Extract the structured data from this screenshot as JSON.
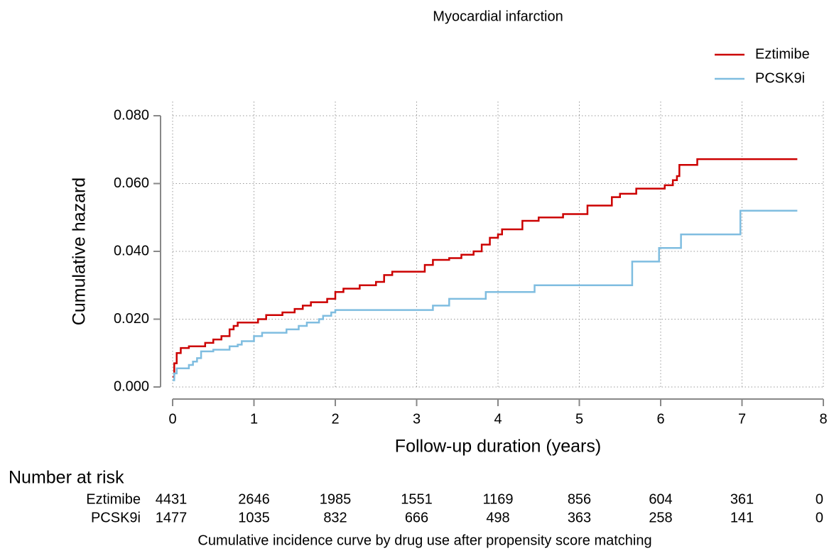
{
  "chart_data": {
    "type": "step",
    "title": "Myocardial infarction",
    "x_label": "Follow-up duration (years)",
    "y_label": "Cumulative hazard",
    "caption": "Cumulative incidence curve by drug use after propensity score matching",
    "xlim": [
      0,
      8
    ],
    "ylim": [
      0,
      0.08
    ],
    "xticks": [
      0,
      1,
      2,
      3,
      4,
      5,
      6,
      7,
      8
    ],
    "yticks": [
      {
        "value": 0,
        "label": "0.000"
      },
      {
        "value": 0.02,
        "label": "0.020"
      },
      {
        "value": 0.04,
        "label": "0.040"
      },
      {
        "value": 0.06,
        "label": "0.060"
      },
      {
        "value": 0.08,
        "label": "0.080"
      }
    ],
    "grid": true,
    "legend_position": "top-right",
    "series": [
      {
        "name": "Eztimibe",
        "color": "#cc0000",
        "x": [
          0,
          0.02,
          0.05,
          0.1,
          0.2,
          0.4,
          0.5,
          0.6,
          0.7,
          0.75,
          0.8,
          1.05,
          1.15,
          1.35,
          1.5,
          1.6,
          1.7,
          1.9,
          2.0,
          2.1,
          2.3,
          2.5,
          2.6,
          2.7,
          3.1,
          3.2,
          3.4,
          3.55,
          3.7,
          3.8,
          3.9,
          4.0,
          4.05,
          4.3,
          4.5,
          4.8,
          5.1,
          5.4,
          5.5,
          5.7,
          6.05,
          6.15,
          6.2,
          6.23,
          6.45,
          7.68
        ],
        "values": [
          0.003,
          0.007,
          0.01,
          0.0115,
          0.012,
          0.013,
          0.014,
          0.015,
          0.017,
          0.018,
          0.019,
          0.02,
          0.0212,
          0.022,
          0.023,
          0.024,
          0.025,
          0.026,
          0.028,
          0.029,
          0.03,
          0.031,
          0.033,
          0.034,
          0.036,
          0.0375,
          0.038,
          0.039,
          0.04,
          0.042,
          0.044,
          0.045,
          0.0465,
          0.049,
          0.05,
          0.051,
          0.0535,
          0.056,
          0.057,
          0.0585,
          0.0595,
          0.061,
          0.0622,
          0.0655,
          0.0672,
          0.0672
        ]
      },
      {
        "name": "PCSK9i",
        "color": "#7fbde0",
        "x": [
          0,
          0.02,
          0.05,
          0.2,
          0.25,
          0.3,
          0.35,
          0.5,
          0.7,
          0.8,
          0.85,
          1.0,
          1.1,
          1.4,
          1.55,
          1.65,
          1.8,
          1.85,
          1.95,
          2.0,
          3.2,
          3.4,
          3.85,
          4.45,
          5.65,
          5.98,
          6.25,
          6.98,
          7.68
        ],
        "values": [
          0.002,
          0.004,
          0.0055,
          0.0065,
          0.0075,
          0.0085,
          0.0105,
          0.011,
          0.012,
          0.0125,
          0.0135,
          0.015,
          0.016,
          0.017,
          0.018,
          0.019,
          0.02,
          0.021,
          0.022,
          0.0227,
          0.024,
          0.026,
          0.028,
          0.03,
          0.037,
          0.041,
          0.045,
          0.052,
          0.052
        ]
      }
    ],
    "risk_table": {
      "title": "Number at risk",
      "rows": [
        {
          "name": "Eztimibe",
          "values": [
            4431,
            2646,
            1985,
            1551,
            1169,
            856,
            604,
            361,
            0
          ]
        },
        {
          "name": "PCSK9i",
          "values": [
            1477,
            1035,
            832,
            666,
            498,
            363,
            258,
            141,
            0
          ]
        }
      ]
    }
  }
}
